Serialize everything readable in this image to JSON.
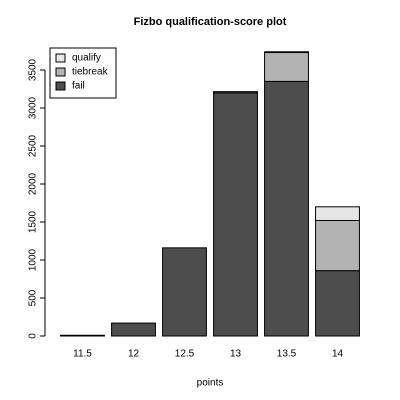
{
  "chart_data": {
    "type": "stacked_bar",
    "title": "Fizbo qualification-score plot",
    "x_label": "points",
    "categories": [
      "11.5",
      "12",
      "12.5",
      "13",
      "13.5",
      "14"
    ],
    "series": [
      {
        "name": "fail",
        "color": "#4d4d4d",
        "values": [
          10,
          170,
          1160,
          3200,
          3350,
          860
        ]
      },
      {
        "name": "tiebreak",
        "color": "#b3b3b3",
        "values": [
          0,
          0,
          0,
          15,
          380,
          660
        ]
      },
      {
        "name": "qualify",
        "color": "#e6e6e6",
        "values": [
          0,
          0,
          0,
          0,
          10,
          180
        ]
      }
    ],
    "ylim": [
      0,
      3500
    ],
    "yticks": [
      0,
      500,
      1000,
      1500,
      2000,
      2500,
      3000,
      3500
    ],
    "legend": "top-left"
  }
}
